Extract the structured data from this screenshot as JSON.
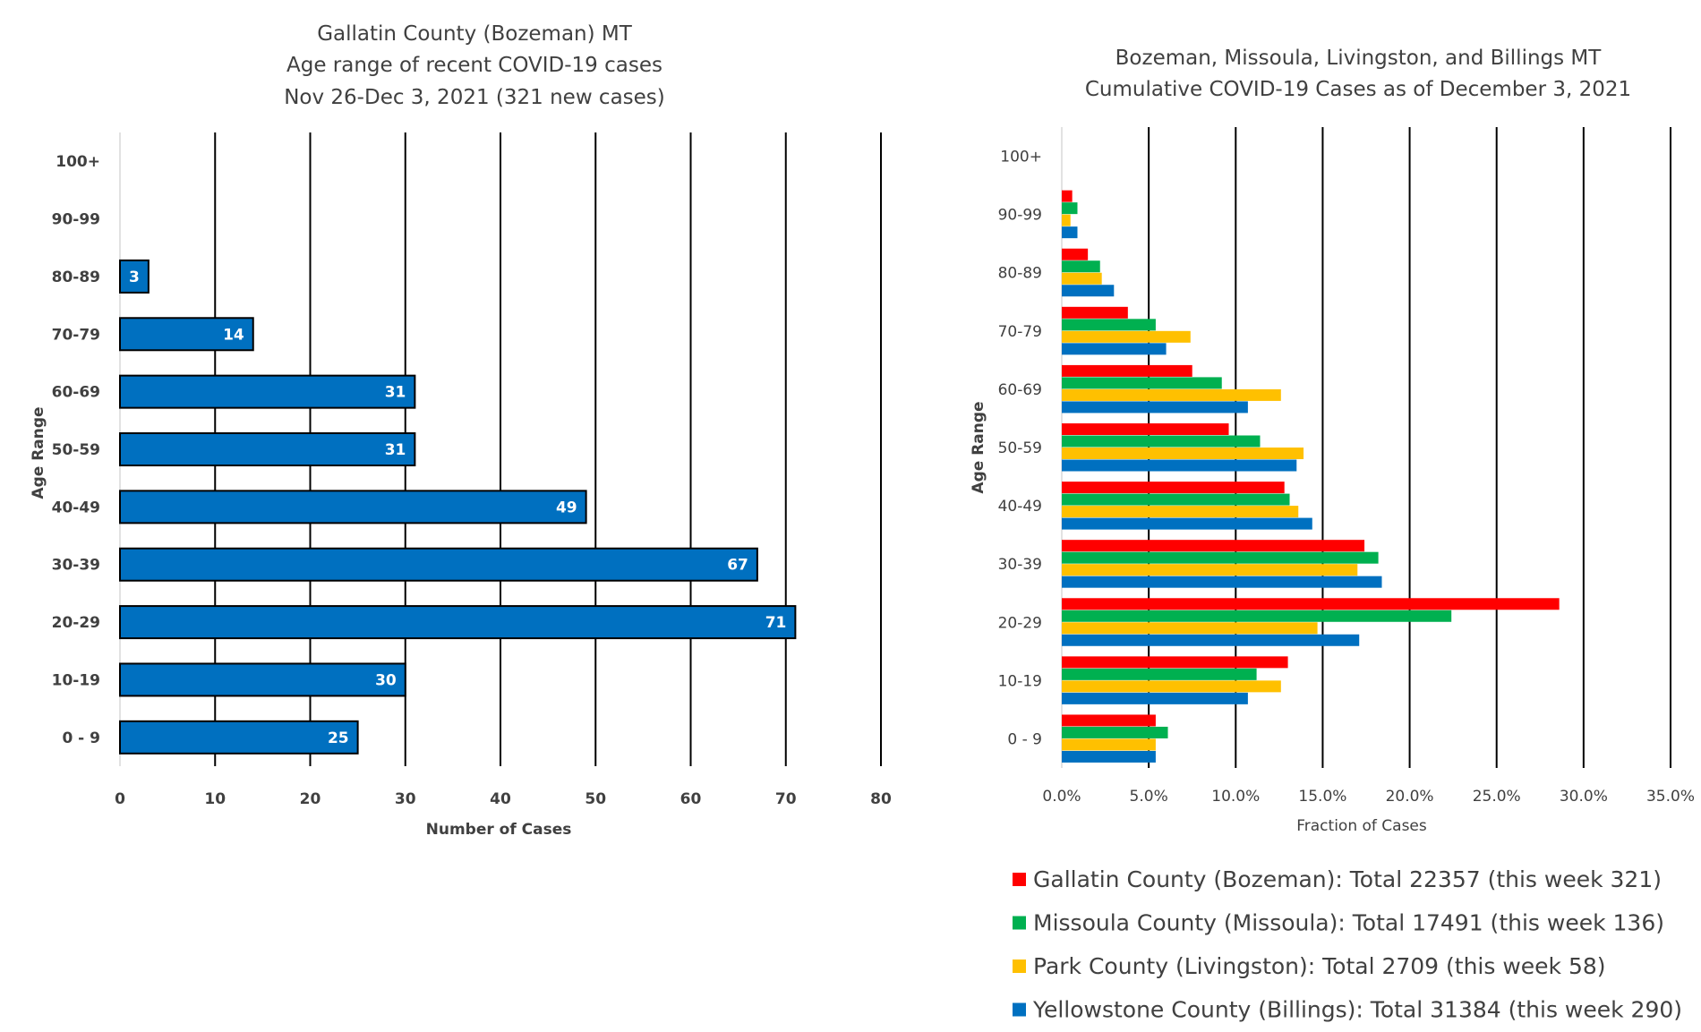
{
  "chart_data": [
    {
      "type": "bar",
      "orientation": "horizontal",
      "title": [
        "Gallatin County (Bozeman) MT",
        "Age range of recent COVID-19 cases",
        "Nov 26-Dec 3, 2021 (321 new cases)"
      ],
      "xlabel": "Number of Cases",
      "ylabel": "Age Range",
      "categories": [
        "0 - 9",
        "10-19",
        "20-29",
        "30-39",
        "40-49",
        "50-59",
        "60-69",
        "70-79",
        "80-89",
        "90-99",
        "100+"
      ],
      "values": [
        25,
        30,
        71,
        67,
        49,
        31,
        31,
        14,
        3,
        null,
        null
      ],
      "data_labels": [
        "25",
        "30",
        "71",
        "67",
        "49",
        "31",
        "31",
        "14",
        "3",
        "",
        ""
      ],
      "xlim": [
        0,
        80
      ],
      "xticks": [
        0,
        10,
        20,
        30,
        40,
        50,
        60,
        70,
        80
      ],
      "xtick_labels": [
        "0",
        "10",
        "20",
        "30",
        "40",
        "50",
        "60",
        "70",
        "80"
      ],
      "grid": "vertical",
      "bar_color": "#0070C0"
    },
    {
      "type": "bar",
      "orientation": "horizontal",
      "title": [
        "Bozeman, Missoula, Livingston, and Billings MT",
        "Cumulative COVID-19 Cases as of December 3, 2021"
      ],
      "xlabel": "Fraction of Cases",
      "ylabel": "Age Range",
      "categories": [
        "0 - 9",
        "10-19",
        "20-29",
        "30-39",
        "40-49",
        "50-59",
        "60-69",
        "70-79",
        "80-89",
        "90-99",
        "100+"
      ],
      "xlim": [
        0,
        0.35
      ],
      "xticks": [
        0,
        0.05,
        0.1,
        0.15,
        0.2,
        0.25,
        0.3,
        0.35
      ],
      "xtick_labels": [
        "0.0%",
        "5.0%",
        "10.0%",
        "15.0%",
        "20.0%",
        "25.0%",
        "30.0%",
        "35.0%"
      ],
      "grid": "vertical",
      "legend_position": "bottom",
      "series": [
        {
          "name": "Gallatin County (Bozeman): Total 22357 (this week 321)",
          "color": "#FF0000",
          "values": [
            0.054,
            0.13,
            0.286,
            0.174,
            0.128,
            0.096,
            0.075,
            0.038,
            0.015,
            0.006,
            0.0
          ]
        },
        {
          "name": "Missoula County (Missoula): Total 17491 (this week 136)",
          "color": "#00B050",
          "values": [
            0.061,
            0.112,
            0.224,
            0.182,
            0.131,
            0.114,
            0.092,
            0.054,
            0.022,
            0.009,
            0.0
          ]
        },
        {
          "name": "Park County (Livingston): Total 2709 (this week 58)",
          "color": "#FFC000",
          "values": [
            0.054,
            0.126,
            0.147,
            0.17,
            0.136,
            0.139,
            0.126,
            0.074,
            0.023,
            0.005,
            0.0
          ]
        },
        {
          "name": "Yellowstone County (Billings): Total 31384 (this week 290)",
          "color": "#0070C0",
          "values": [
            0.054,
            0.107,
            0.171,
            0.184,
            0.144,
            0.135,
            0.107,
            0.06,
            0.03,
            0.009,
            0.0
          ]
        }
      ]
    }
  ]
}
